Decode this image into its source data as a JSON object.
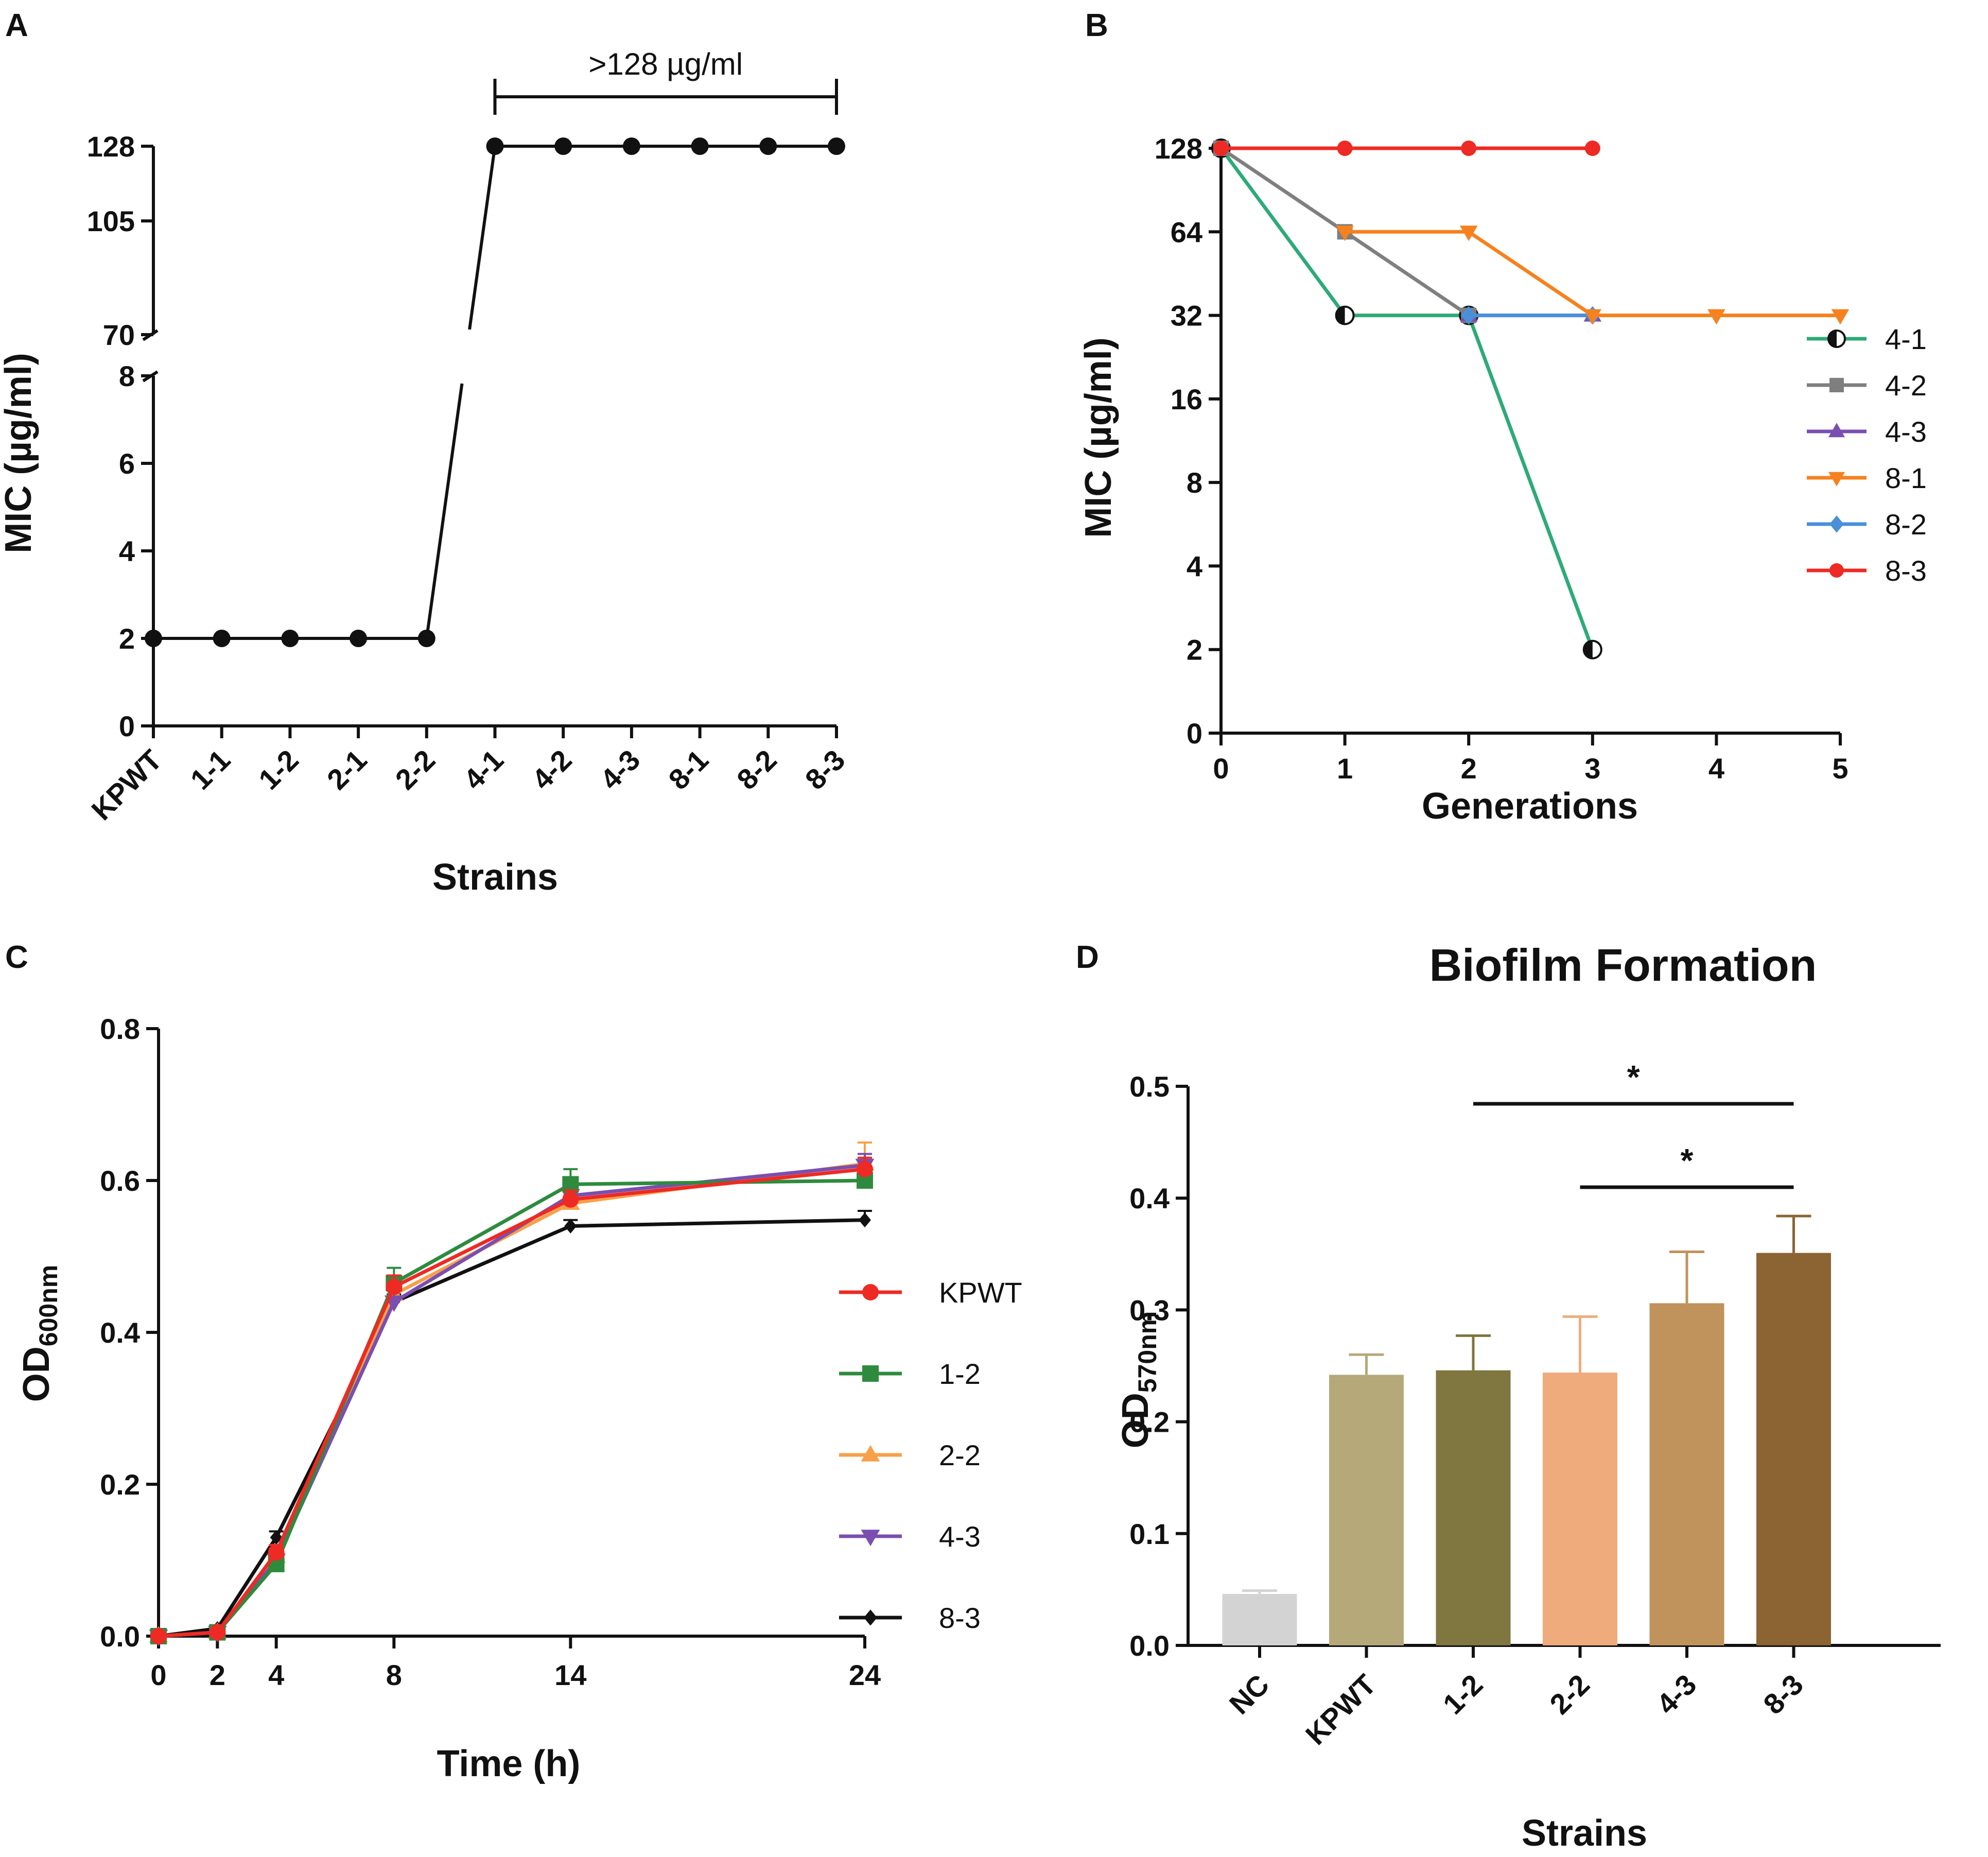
{
  "panels": {
    "a": {
      "label": "A"
    },
    "b": {
      "label": "B"
    },
    "c": {
      "label": "C"
    },
    "d": {
      "label": "D"
    }
  },
  "chart_data": [
    {
      "id": "A",
      "type": "line",
      "xlabel": "Strains",
      "ylabel": "MIC (µg/ml)",
      "y_ticks_lower": [
        "0",
        "2",
        "4",
        "6",
        "8"
      ],
      "y_ticks_upper": [
        "70",
        "105",
        "128"
      ],
      "y_axis_break": true,
      "categories": [
        "KPWT",
        "1-1",
        "1-2",
        "2-1",
        "2-2",
        "4-1",
        "4-2",
        "4-3",
        "8-1",
        "8-2",
        "8-3"
      ],
      "values": [
        2,
        2,
        2,
        2,
        2,
        128,
        128,
        128,
        128,
        128,
        128
      ],
      "annotation": ">128 µg/ml",
      "annotation_span": [
        "4-1",
        "8-3"
      ],
      "color": "#000000"
    },
    {
      "id": "B",
      "type": "line",
      "xlabel": "Generations",
      "ylabel": "MIC (µg/ml)",
      "y_scale": "log2",
      "y_ticks": [
        "0",
        "2",
        "4",
        "8",
        "16",
        "32",
        "64",
        "128"
      ],
      "x_ticks": [
        "0",
        "1",
        "2",
        "3",
        "4",
        "5"
      ],
      "series": [
        {
          "name": "4-1",
          "color": "#2eaa78",
          "marker": "half-circle",
          "x": [
            0,
            1,
            2,
            3
          ],
          "values": [
            128,
            32,
            32,
            2
          ]
        },
        {
          "name": "4-2",
          "color": "#7f7f7f",
          "marker": "square",
          "x": [
            0,
            1,
            2
          ],
          "values": [
            128,
            64,
            32
          ]
        },
        {
          "name": "4-3",
          "color": "#7a4fb0",
          "marker": "triangle-up",
          "x": [
            2,
            3
          ],
          "values": [
            32,
            32
          ]
        },
        {
          "name": "8-1",
          "color": "#f5821f",
          "marker": "triangle-down",
          "x": [
            1,
            2,
            3,
            4,
            5
          ],
          "values": [
            64,
            64,
            32,
            32,
            32
          ]
        },
        {
          "name": "8-2",
          "color": "#4a90d9",
          "marker": "diamond",
          "x": [
            2,
            3
          ],
          "values": [
            32,
            32
          ]
        },
        {
          "name": "8-3",
          "color": "#ee2a24",
          "marker": "circle",
          "x": [
            0,
            1,
            2,
            3
          ],
          "values": [
            128,
            128,
            128,
            128
          ]
        }
      ]
    },
    {
      "id": "C",
      "type": "line",
      "xlabel": "Time (h)",
      "ylabel_main": "OD",
      "ylabel_sub": "600nm",
      "x": [
        0,
        2,
        4,
        8,
        14,
        24
      ],
      "x_ticks": [
        "0",
        "2",
        "4",
        "8",
        "14",
        "24"
      ],
      "y_ticks": [
        "0.0",
        "0.2",
        "0.4",
        "0.6",
        "0.8"
      ],
      "ylim": [
        0,
        0.8
      ],
      "series": [
        {
          "name": "KPWT",
          "color": "#ee2a24",
          "marker": "circle",
          "values": [
            0.0,
            0.005,
            0.11,
            0.46,
            0.575,
            0.615
          ],
          "err": [
            0.005,
            0.004,
            0.01,
            0.015,
            0.012,
            0.015
          ]
        },
        {
          "name": "1-2",
          "color": "#2e8b3e",
          "marker": "square",
          "values": [
            0.0,
            0.005,
            0.095,
            0.465,
            0.595,
            0.6
          ],
          "err": [
            0.005,
            0.004,
            0.01,
            0.02,
            0.02,
            0.012
          ]
        },
        {
          "name": "2-2",
          "color": "#f7a04a",
          "marker": "triangle-up",
          "values": [
            0.0,
            0.005,
            0.105,
            0.45,
            0.57,
            0.622
          ],
          "err": [
            0.005,
            0.004,
            0.01,
            0.015,
            0.012,
            0.028
          ]
        },
        {
          "name": "4-3",
          "color": "#7a4fb0",
          "marker": "triangle-down",
          "values": [
            0.0,
            0.005,
            0.1,
            0.44,
            0.58,
            0.62
          ],
          "err": [
            0.005,
            0.004,
            0.01,
            0.015,
            0.012,
            0.015
          ]
        },
        {
          "name": "8-3",
          "color": "#111111",
          "marker": "diamond",
          "values": [
            0.0,
            0.01,
            0.13,
            0.44,
            0.54,
            0.548
          ],
          "err": [
            0.005,
            0.004,
            0.008,
            0.01,
            0.008,
            0.012
          ]
        }
      ]
    },
    {
      "id": "D",
      "type": "bar",
      "title": "Biofilm Formation",
      "xlabel": "Strains",
      "ylabel_main": "OD",
      "ylabel_sub": "570nm",
      "categories": [
        "NC",
        "KPWT",
        "1-2",
        "2-2",
        "4-3",
        "8-3"
      ],
      "values": [
        0.046,
        0.242,
        0.246,
        0.244,
        0.306,
        0.351
      ],
      "err": [
        0.003,
        0.018,
        0.031,
        0.05,
        0.046,
        0.033
      ],
      "colors": [
        "#d3d3d3",
        "#b5a97a",
        "#807640",
        "#efab7c",
        "#c0935d",
        "#8c6332"
      ],
      "y_ticks": [
        "0.0",
        "0.1",
        "0.2",
        "0.3",
        "0.4",
        "0.5"
      ],
      "ylim": [
        0,
        0.5
      ],
      "significance": [
        {
          "from": "1-2",
          "to": "8-3",
          "label": "*"
        },
        {
          "from": "2-2",
          "to": "8-3",
          "label": "*"
        }
      ]
    }
  ]
}
